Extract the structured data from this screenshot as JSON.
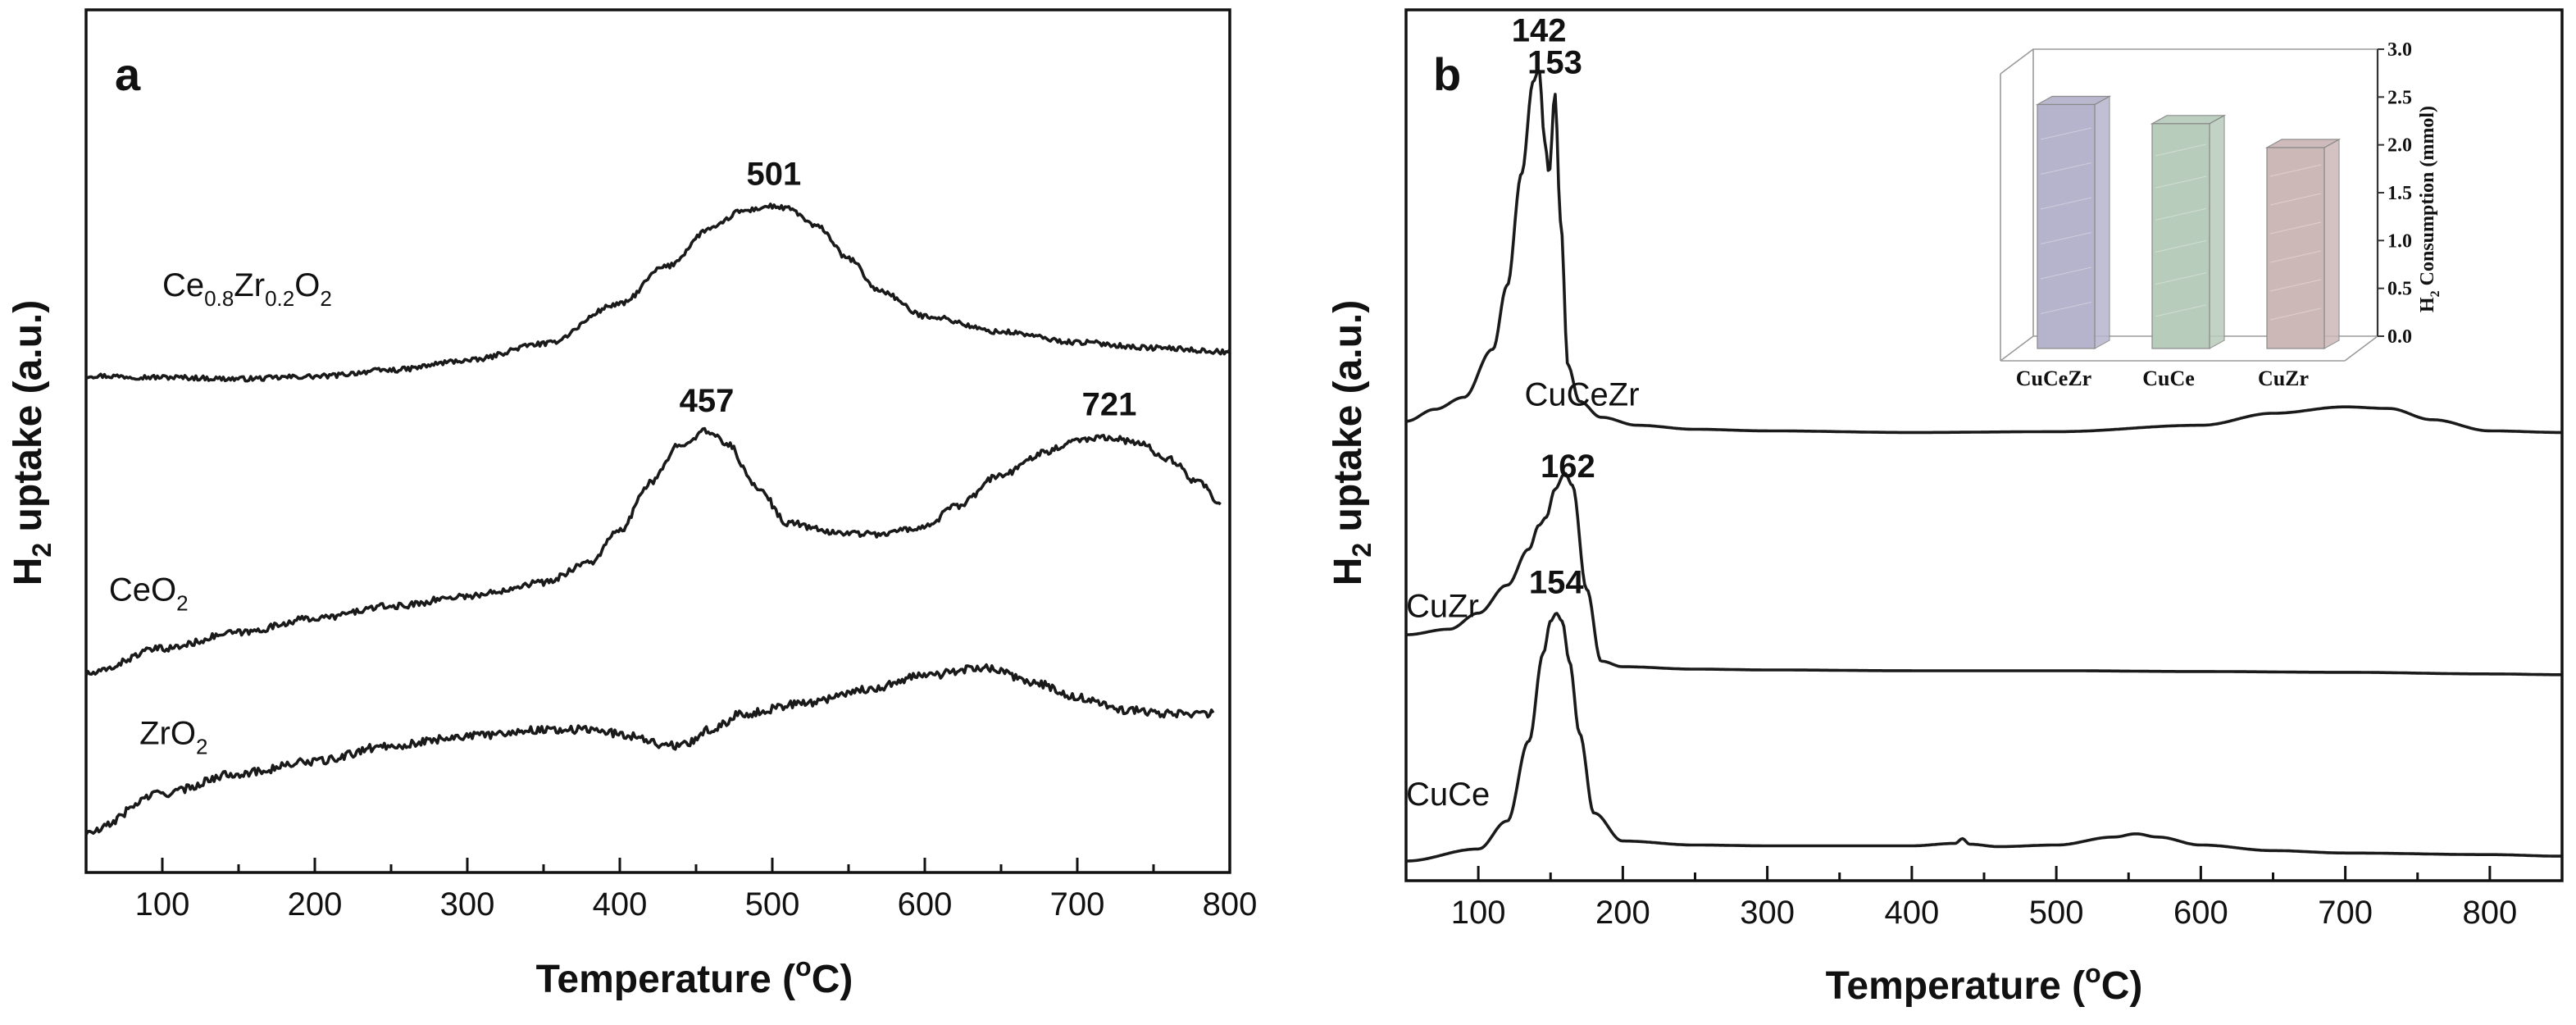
{
  "chart_data": [
    {
      "panel": "a",
      "type": "line",
      "panel_label": "a",
      "xlabel": "Temperature (°C)",
      "xlabel_parts": [
        "Temperature (",
        "o",
        "C)"
      ],
      "ylabel": "H2 uptake (a.u.)",
      "ylabel_parts": [
        "H",
        "2",
        " uptake (a.u.)"
      ],
      "xlim": [
        50,
        800
      ],
      "xticks": [
        100,
        200,
        300,
        400,
        500,
        600,
        700,
        800
      ],
      "ylim": [
        0,
        1
      ],
      "y_ticklabels": false,
      "series": [
        {
          "name": "Ce0.8Zr0.2O2",
          "label_parts": [
            [
              "Ce",
              ""
            ],
            [
              "0.8",
              "sub"
            ],
            [
              "Zr",
              ""
            ],
            [
              "0.2",
              "sub"
            ],
            [
              "O",
              ""
            ],
            [
              "2",
              "sub"
            ]
          ],
          "label_at": [
            100,
            0.705
          ],
          "x": [
            50,
            100,
            150,
            200,
            250,
            300,
            350,
            400,
            430,
            460,
            480,
            500,
            510,
            530,
            550,
            570,
            600,
            650,
            700,
            750,
            800
          ],
          "y": [
            0.605,
            0.603,
            0.601,
            0.604,
            0.612,
            0.624,
            0.645,
            0.695,
            0.742,
            0.79,
            0.812,
            0.818,
            0.815,
            0.792,
            0.752,
            0.712,
            0.68,
            0.66,
            0.647,
            0.64,
            0.635
          ],
          "noise": 0.003
        },
        {
          "name": "CeO2",
          "label_parts": [
            [
              "CeO",
              ""
            ],
            [
              "2",
              "sub"
            ]
          ],
          "label_at": [
            65,
            0.322
          ],
          "x": [
            50,
            100,
            150,
            200,
            250,
            300,
            350,
            380,
            400,
            420,
            440,
            457,
            470,
            490,
            510,
            540,
            570,
            600,
            620,
            650,
            680,
            700,
            721,
            740,
            760,
            780,
            795
          ],
          "y": [
            0.23,
            0.262,
            0.282,
            0.3,
            0.315,
            0.328,
            0.345,
            0.37,
            0.41,
            0.47,
            0.52,
            0.535,
            0.52,
            0.465,
            0.42,
            0.408,
            0.406,
            0.415,
            0.44,
            0.48,
            0.51,
            0.525,
            0.528,
            0.52,
            0.5,
            0.47,
            0.44
          ],
          "noise": 0.004
        },
        {
          "name": "ZrO2",
          "label_parts": [
            [
              "ZrO",
              ""
            ],
            [
              "2",
              "sub"
            ]
          ],
          "label_at": [
            85,
            0.142
          ],
          "x": [
            50,
            100,
            150,
            200,
            250,
            300,
            350,
            380,
            410,
            430,
            440,
            460,
            480,
            520,
            560,
            600,
            640,
            670,
            700,
            730,
            760,
            790
          ],
          "y": [
            0.03,
            0.08,
            0.105,
            0.12,
            0.14,
            0.152,
            0.16,
            0.16,
            0.152,
            0.14,
            0.14,
            0.16,
            0.18,
            0.193,
            0.21,
            0.228,
            0.238,
            0.22,
            0.2,
            0.185,
            0.18,
            0.18
          ],
          "noise": 0.005
        }
      ],
      "annotations": [
        {
          "text": "501",
          "x": 501,
          "y": 0.845
        },
        {
          "text": "457",
          "x": 457,
          "y": 0.56
        },
        {
          "text": "721",
          "x": 721,
          "y": 0.555
        }
      ]
    },
    {
      "panel": "b",
      "type": "line",
      "panel_label": "b",
      "xlabel": "Temperature (°C)",
      "xlabel_parts": [
        "Temperature (",
        "o",
        "C)"
      ],
      "ylabel": "H2 uptake (a.u.)",
      "ylabel_parts": [
        "H",
        "2",
        " uptake (a.u.)"
      ],
      "xlim": [
        50,
        850
      ],
      "xticks": [
        100,
        200,
        300,
        400,
        500,
        600,
        700,
        800
      ],
      "ylim": [
        0,
        1
      ],
      "y_ticklabels": false,
      "series": [
        {
          "name": "CuCeZr",
          "label_parts": [
            [
              "CuCeZr",
              ""
            ]
          ],
          "label_at": [
            132,
            0.57
          ],
          "x": [
            50,
            70,
            90,
            110,
            120,
            130,
            138,
            142,
            146,
            149,
            153,
            157,
            162,
            170,
            185,
            210,
            250,
            300,
            400,
            500,
            600,
            650,
            700,
            730,
            760,
            800,
            850
          ],
          "y": [
            0.55,
            0.565,
            0.58,
            0.64,
            0.72,
            0.86,
            0.975,
            0.99,
            0.9,
            0.86,
            0.96,
            0.8,
            0.62,
            0.575,
            0.555,
            0.545,
            0.54,
            0.538,
            0.536,
            0.537,
            0.545,
            0.56,
            0.568,
            0.566,
            0.552,
            0.538,
            0.536
          ],
          "noise": 0.0
        },
        {
          "name": "CuZr",
          "label_parts": [
            [
              "CuZr",
              ""
            ]
          ],
          "label_at": [
            50,
            0.305
          ],
          "x": [
            50,
            80,
            100,
            120,
            135,
            142,
            147,
            153,
            160,
            165,
            175,
            185,
            200,
            250,
            300,
            400,
            500,
            600,
            700,
            800,
            850
          ],
          "y": [
            0.283,
            0.29,
            0.31,
            0.345,
            0.39,
            0.42,
            0.43,
            0.465,
            0.485,
            0.47,
            0.34,
            0.25,
            0.243,
            0.24,
            0.239,
            0.238,
            0.238,
            0.237,
            0.236,
            0.234,
            0.233
          ],
          "noise": 0.0
        },
        {
          "name": "CuCe",
          "label_parts": [
            [
              "CuCe",
              ""
            ]
          ],
          "label_at": [
            50,
            0.07
          ],
          "x": [
            50,
            100,
            120,
            135,
            145,
            150,
            154,
            158,
            163,
            170,
            180,
            200,
            250,
            300,
            400,
            430,
            435,
            440,
            460,
            500,
            540,
            555,
            570,
            600,
            650,
            700,
            800,
            850
          ],
          "y": [
            0.0,
            0.015,
            0.05,
            0.15,
            0.26,
            0.3,
            0.31,
            0.3,
            0.25,
            0.16,
            0.06,
            0.025,
            0.02,
            0.019,
            0.019,
            0.022,
            0.028,
            0.021,
            0.018,
            0.02,
            0.03,
            0.034,
            0.03,
            0.02,
            0.013,
            0.01,
            0.008,
            0.006
          ],
          "noise": 0.0
        }
      ],
      "annotations": [
        {
          "text": "142",
          "x": 142,
          "y": 1.025
        },
        {
          "text": "153",
          "x": 153,
          "y": 0.985
        },
        {
          "text": "162",
          "x": 162,
          "y": 0.48
        },
        {
          "text": "154",
          "x": 154,
          "y": 0.335
        }
      ],
      "inset": {
        "type": "bar",
        "categories": [
          "CuCeZr",
          "CuCe",
          "CuZr"
        ],
        "values": [
          2.55,
          2.35,
          2.1
        ],
        "colors": [
          "#b6b4cc",
          "#b8ccbc",
          "#cdb8b8"
        ],
        "ylabel": "H2 Consumption (mmol)",
        "ylabel_parts": [
          "H",
          "2",
          " Consumption (mmol)"
        ],
        "ylim": [
          0,
          3.0
        ],
        "yticks": [
          "0.0",
          "0.5",
          "1.0",
          "1.5",
          "2.0",
          "2.5",
          "3.0"
        ]
      }
    }
  ]
}
